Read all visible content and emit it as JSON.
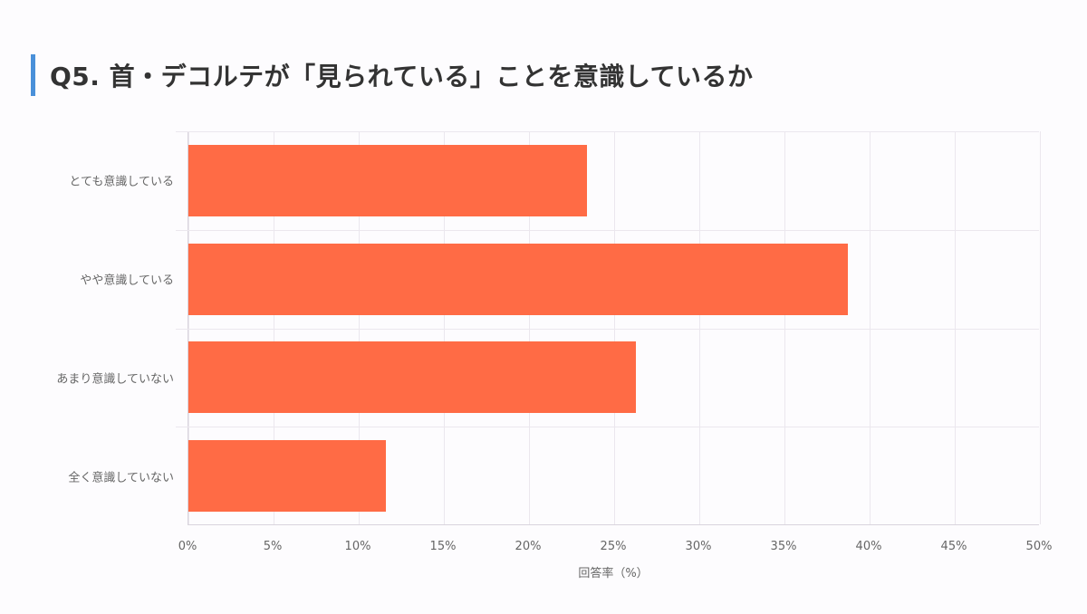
{
  "header": {
    "title": "Q5. 首・デコルテが「見られている」ことを意識しているか",
    "accent_color": "#4a90d9"
  },
  "chart_data": {
    "type": "bar",
    "orientation": "horizontal",
    "title": "Q5. 首・デコルテが「見られている」ことを意識しているか",
    "categories": [
      "とても意識している",
      "やや意識している",
      "あまり意識していない",
      "全く意識していない"
    ],
    "values": [
      23.4,
      38.7,
      26.3,
      11.6
    ],
    "xlabel": "回答率（%）",
    "ylabel": "",
    "xlim": [
      0,
      50
    ],
    "x_ticks": [
      "0%",
      "5%",
      "10%",
      "15%",
      "20%",
      "25%",
      "30%",
      "35%",
      "40%",
      "45%",
      "50%"
    ],
    "grid": true,
    "legend": null,
    "bar_color": "#ff6b45"
  },
  "axis": {
    "x_title": "回答率（%）",
    "ticks": [
      "0%",
      "5%",
      "10%",
      "15%",
      "20%",
      "25%",
      "30%",
      "35%",
      "40%",
      "45%",
      "50%"
    ]
  },
  "categories": [
    {
      "label": "とても意識している",
      "value": 23.4
    },
    {
      "label": "やや意識している",
      "value": 38.7
    },
    {
      "label": "あまり意識していない",
      "value": 26.3
    },
    {
      "label": "全く意識していない",
      "value": 11.6
    }
  ]
}
